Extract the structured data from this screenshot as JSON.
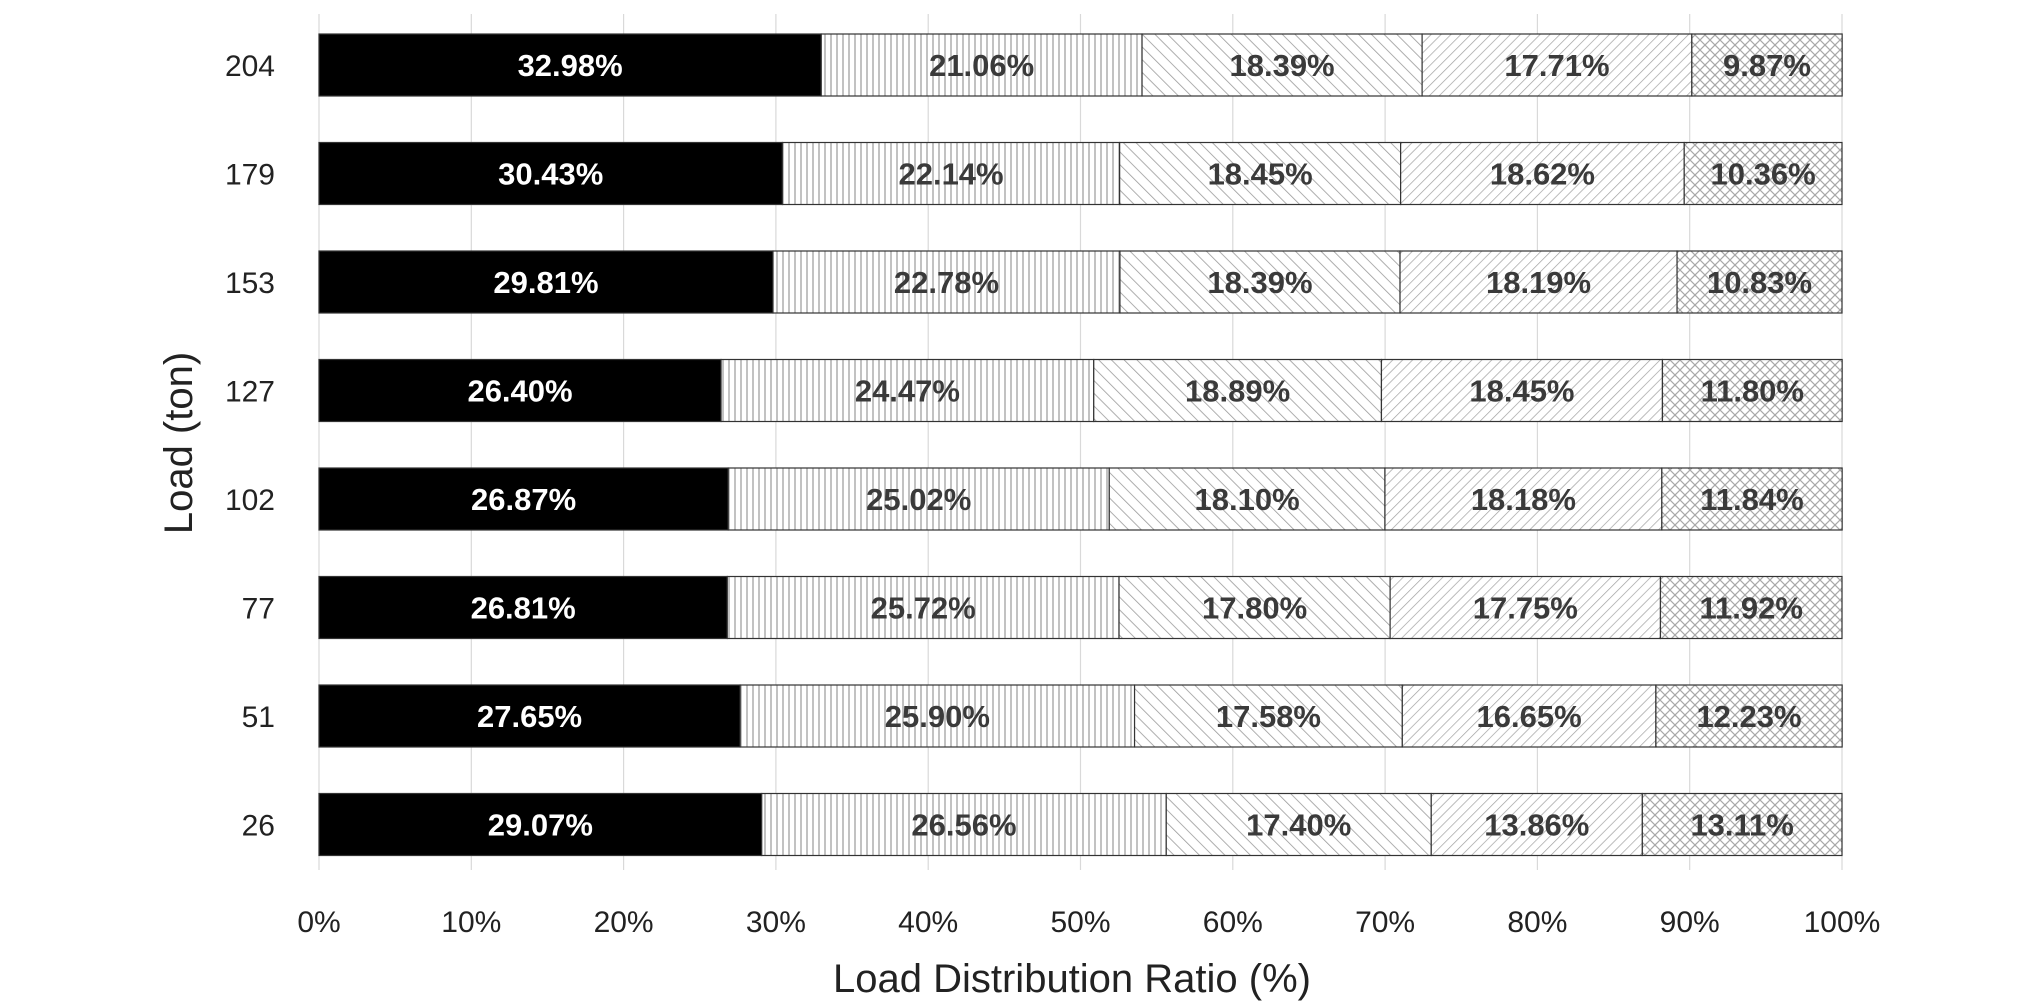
{
  "chart_data": {
    "type": "bar",
    "orientation": "horizontal",
    "stacked": "percent",
    "title": "",
    "xlabel": "Load Distribution Ratio (%)",
    "ylabel": "Load (ton)",
    "xlim": [
      0,
      100
    ],
    "x_ticks": [
      "0%",
      "10%",
      "20%",
      "30%",
      "40%",
      "50%",
      "60%",
      "70%",
      "80%",
      "90%",
      "100%"
    ],
    "grid": "vertical",
    "legend": "none",
    "categories": [
      "204",
      "179",
      "153",
      "127",
      "102",
      "77",
      "51",
      "26"
    ],
    "series": [
      {
        "fill": "#000000",
        "pattern": "solid",
        "values": [
          32.98,
          30.43,
          29.81,
          26.4,
          26.87,
          26.81,
          27.65,
          29.07
        ],
        "labels": [
          "32.98%",
          "30.43%",
          "29.81%",
          "26.40%",
          "26.87%",
          "26.81%",
          "27.65%",
          "29.07%"
        ]
      },
      {
        "fill": "#ffffff",
        "pattern": "vertical-lines",
        "values": [
          21.06,
          22.14,
          22.78,
          24.47,
          25.02,
          25.72,
          25.9,
          26.56
        ],
        "labels": [
          "21.06%",
          "22.14%",
          "22.78%",
          "24.47%",
          "25.02%",
          "25.72%",
          "25.90%",
          "26.56%"
        ]
      },
      {
        "fill": "#ffffff",
        "pattern": "backward-diagonal",
        "values": [
          18.39,
          18.45,
          18.39,
          18.89,
          18.1,
          17.8,
          17.58,
          17.4
        ],
        "labels": [
          "18.39%",
          "18.45%",
          "18.39%",
          "18.89%",
          "18.10%",
          "17.80%",
          "17.58%",
          "17.40%"
        ]
      },
      {
        "fill": "#ffffff",
        "pattern": "forward-diagonal",
        "values": [
          17.71,
          18.62,
          18.19,
          18.45,
          18.18,
          17.75,
          16.65,
          13.86
        ],
        "labels": [
          "17.71%",
          "18.62%",
          "18.19%",
          "18.45%",
          "18.18%",
          "17.75%",
          "16.65%",
          "13.86%"
        ]
      },
      {
        "fill": "#ffffff",
        "pattern": "crosshatch",
        "values": [
          9.87,
          10.36,
          10.83,
          11.8,
          11.84,
          11.92,
          12.23,
          13.11
        ],
        "labels": [
          "9.87%",
          "10.36%",
          "10.83%",
          "11.80%",
          "11.84%",
          "11.92%",
          "12.23%",
          "13.11%"
        ]
      }
    ]
  }
}
